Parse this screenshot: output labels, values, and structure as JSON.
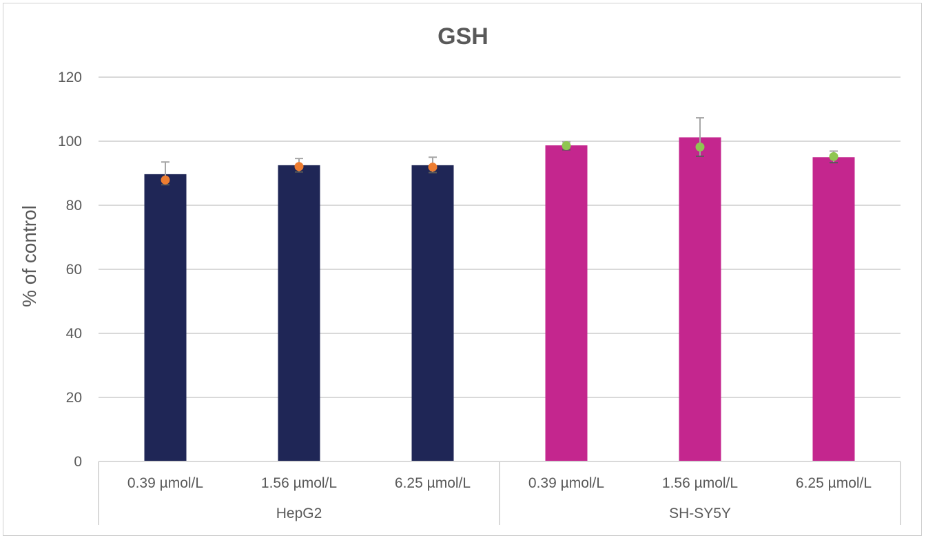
{
  "chart_data": {
    "type": "bar",
    "title": "GSH",
    "ylabel": "% of control",
    "xlabel": "",
    "ylim": [
      0,
      120
    ],
    "yticks": [
      0,
      20,
      40,
      60,
      80,
      100,
      120
    ],
    "grid": true,
    "groups": [
      {
        "name": "HepG2",
        "categories": [
          "0.39 µmol/L",
          "1.56 µmol/L",
          "6.25 µmol/L"
        ],
        "values": [
          89.7,
          92.5,
          92.5
        ],
        "error_upper": [
          93.5,
          94.6,
          95.0
        ],
        "error_lower": [
          86.4,
          90.4,
          90.2
        ],
        "points": [
          87.9,
          92.1,
          91.9
        ],
        "bar_color": "#1f2656",
        "point_color": "#ed7d31"
      },
      {
        "name": "SH-SY5Y",
        "categories": [
          "0.39 µmol/L",
          "1.56 µmol/L",
          "6.25 µmol/L"
        ],
        "values": [
          98.7,
          101.2,
          95.0
        ],
        "error_upper": [
          99.8,
          107.3,
          96.9
        ],
        "error_lower": [
          97.3,
          95.3,
          93.3
        ],
        "points": [
          98.6,
          98.2,
          95.2
        ],
        "bar_color": "#c4268e",
        "point_color": "#8fc651"
      }
    ]
  }
}
